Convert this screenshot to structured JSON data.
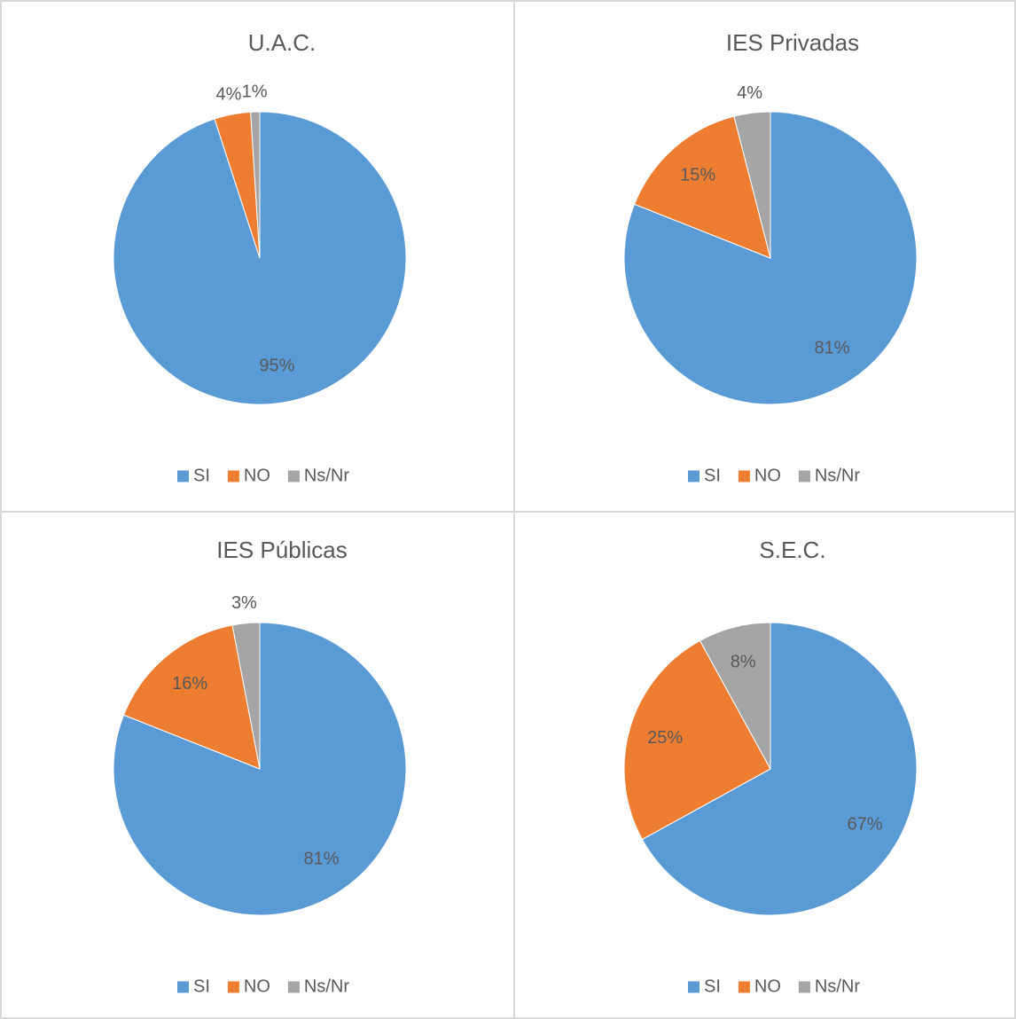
{
  "chart_data": [
    {
      "type": "pie",
      "title": "U.A.C.",
      "categories": [
        "SI",
        "NO",
        "Ns/Nr"
      ],
      "values": [
        95,
        4,
        1
      ],
      "value_labels": [
        "95%",
        "4%",
        "1%"
      ],
      "colors": [
        "#5b9bd5",
        "#ed7d31",
        "#a5a5a5"
      ],
      "legend": "bottom"
    },
    {
      "type": "pie",
      "title": "IES Privadas",
      "categories": [
        "SI",
        "NO",
        "Ns/Nr"
      ],
      "values": [
        81,
        15,
        4
      ],
      "value_labels": [
        "81%",
        "15%",
        "4%"
      ],
      "colors": [
        "#5b9bd5",
        "#ed7d31",
        "#a5a5a5"
      ],
      "legend": "bottom"
    },
    {
      "type": "pie",
      "title": "IES Públicas",
      "categories": [
        "SI",
        "NO",
        "Ns/Nr"
      ],
      "values": [
        81,
        16,
        3
      ],
      "value_labels": [
        "81%",
        "16%",
        "3%"
      ],
      "colors": [
        "#5b9bd5",
        "#ed7d31",
        "#a5a5a5"
      ],
      "legend": "bottom"
    },
    {
      "type": "pie",
      "title": "S.E.C.",
      "categories": [
        "SI",
        "NO",
        "Ns/Nr"
      ],
      "values": [
        67,
        25,
        8
      ],
      "value_labels": [
        "67%",
        "25%",
        "8%"
      ],
      "colors": [
        "#5b9bd5",
        "#ed7d31",
        "#a5a5a5"
      ],
      "legend": "bottom"
    }
  ]
}
